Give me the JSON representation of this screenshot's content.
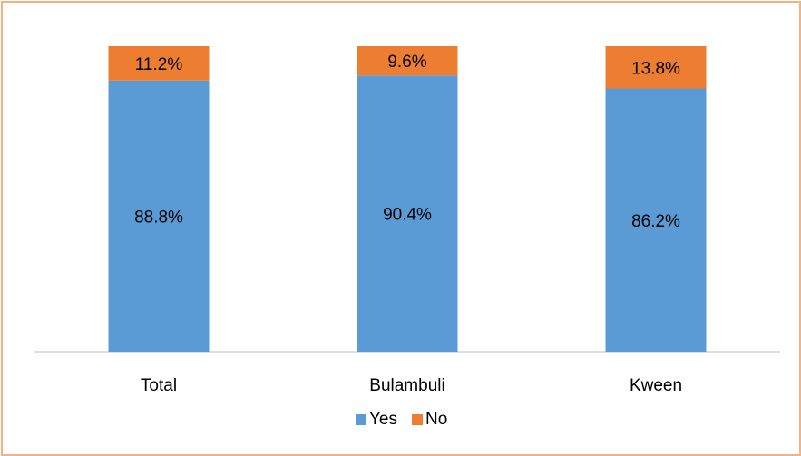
{
  "chart_data": {
    "type": "bar",
    "stacked": true,
    "percent": true,
    "categories": [
      "Total",
      "Bulambuli",
      "Kween"
    ],
    "series": [
      {
        "name": "Yes",
        "values": [
          88.8,
          90.4,
          86.2
        ],
        "labels": [
          "88.8%",
          "90.4%",
          "86.2%"
        ],
        "color": "#5B9BD5"
      },
      {
        "name": "No",
        "values": [
          11.2,
          9.6,
          13.8
        ],
        "labels": [
          "11.2%",
          "9.6%",
          "13.8%"
        ],
        "color": "#ED7D31"
      }
    ],
    "ylim": [
      0,
      100
    ],
    "grid": false,
    "legend_position": "bottom",
    "border_color": "#F4B183",
    "axis_color": "#BFBFBF"
  }
}
